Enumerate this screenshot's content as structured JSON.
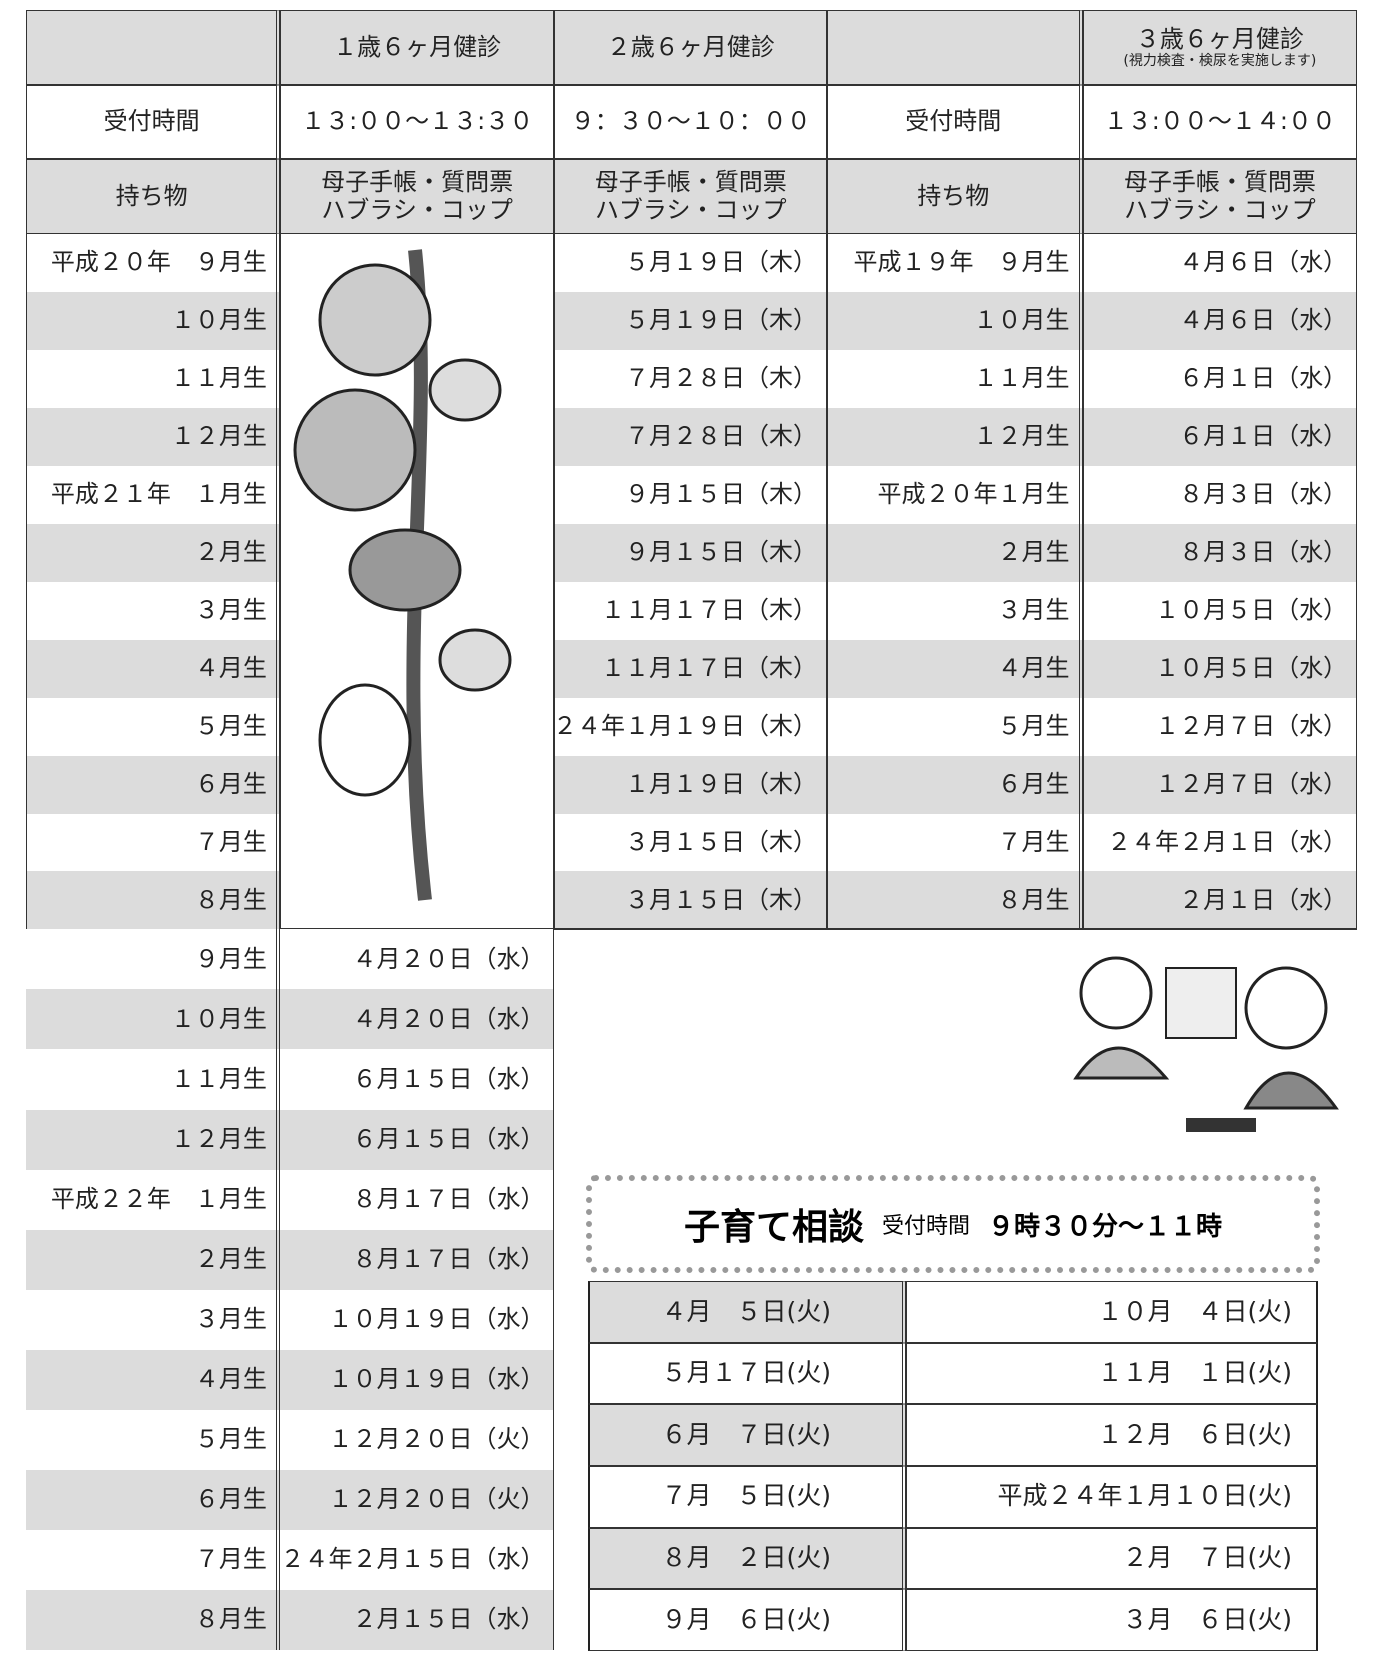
{
  "schedule": {
    "header": {
      "checkup_1": "１歳６ヶ月健診",
      "checkup_2": "２歳６ヶ月健診",
      "checkup_3": "３歳６ヶ月健診",
      "checkup_3_note": "(視力検査・検尿を実施します)"
    },
    "reception": {
      "label_left": "受付時間",
      "time_1": "１３:００～１３:３０",
      "time_2": "９：３０～１０：００",
      "label_right": "受付時間",
      "time_3": "１３:００～１４:００"
    },
    "items": {
      "label_left": "持ち物",
      "items_1": [
        "母子手帳・質問票",
        "ハブラシ・コップ"
      ],
      "items_2": [
        "母子手帳・質問票",
        "ハブラシ・コップ"
      ],
      "label_right": "持ち物",
      "items_3": [
        "母子手帳・質問票",
        "ハブラシ・コップ"
      ]
    },
    "upper_rows": [
      [
        "平成２０年　９月生",
        "５月１９日（木）",
        "平成１９年　９月生",
        "４月６日（水）"
      ],
      [
        "１０月生",
        "５月１９日（木）",
        "１０月生",
        "４月６日（水）"
      ],
      [
        "１１月生",
        "７月２８日（木）",
        "１１月生",
        "６月１日（水）"
      ],
      [
        "１２月生",
        "７月２８日（木）",
        "１２月生",
        "６月１日（水）"
      ],
      [
        "平成２１年　１月生",
        "９月１５日（木）",
        "平成２０年１月生",
        "８月３日（水）"
      ],
      [
        "２月生",
        "９月１５日（木）",
        "２月生",
        "８月３日（水）"
      ],
      [
        "３月生",
        "１１月１７日（木）",
        "３月生",
        "１０月５日（水）"
      ],
      [
        "４月生",
        "１１月１７日（木）",
        "４月生",
        "１０月５日（水）"
      ],
      [
        "５月生",
        "２４年１月１９日（木）",
        "５月生",
        "１２月７日（水）"
      ],
      [
        "６月生",
        "１月１９日（木）",
        "６月生",
        "１２月７日（水）"
      ],
      [
        "７月生",
        "３月１５日（木）",
        "７月生",
        "２４年２月１日（水）"
      ],
      [
        "８月生",
        "３月１５日（木）",
        "８月生",
        "２月１日（水）"
      ]
    ],
    "lower_rows": [
      [
        "９月生",
        "４月２０日（水）"
      ],
      [
        "１０月生",
        "４月２０日（水）"
      ],
      [
        "１１月生",
        "６月１５日（水）"
      ],
      [
        "１２月生",
        "６月１５日（水）"
      ],
      [
        "平成２２年　１月生",
        "８月１７日（水）"
      ],
      [
        "２月生",
        "８月１７日（水）"
      ],
      [
        "３月生",
        "１０月１９日（水）"
      ],
      [
        "４月生",
        "１０月１９日（水）"
      ],
      [
        "５月生",
        "１２月２０日（火）"
      ],
      [
        "６月生",
        "１２月２０日（火）"
      ],
      [
        "７月生",
        "２４年２月１５日（水）"
      ],
      [
        "８月生",
        "２月１５日（水）"
      ]
    ]
  },
  "consultation": {
    "title": "子育て相談",
    "reception_label": "受付時間",
    "reception_time": "９時３０分～１１時",
    "rows": [
      [
        "４月　５日(火)",
        "１０月　４日(火)"
      ],
      [
        "５月１７日(火)",
        "１１月　１日(火)"
      ],
      [
        "６月　７日(火)",
        "１２月　６日(火)"
      ],
      [
        "７月　５日(火)",
        "平成２４年１月１０日(火)"
      ],
      [
        "８月　２日(火)",
        "２月　７日(火)"
      ],
      [
        "９月　６日(火)",
        "３月　６日(火)"
      ]
    ]
  }
}
